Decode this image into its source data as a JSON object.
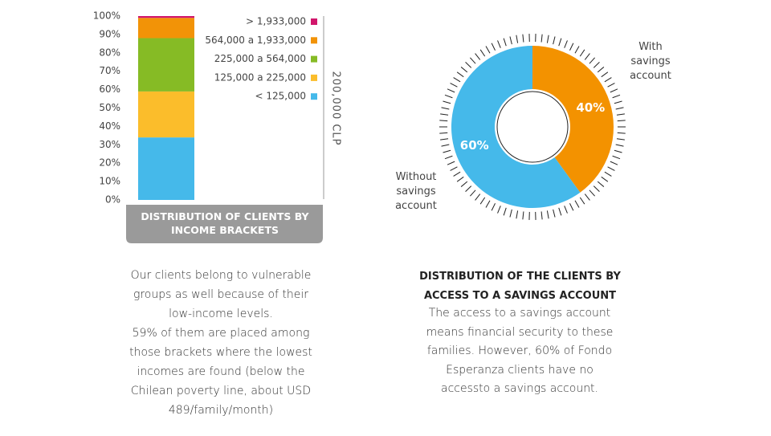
{
  "chart_data": [
    {
      "type": "stacked-bar",
      "title": "DISTRIBUTION OF CLIENTS BY INCOME BRACKETS",
      "annotation": "200,000 CLP",
      "categories": [
        null
      ],
      "series": [
        {
          "name": "< 125,000",
          "color": "#45b9ea",
          "values": [
            34
          ]
        },
        {
          "name": "125,000 a 225,000",
          "color": "#fbbd2b",
          "values": [
            25
          ]
        },
        {
          "name": "225,000 a 564,000",
          "color": "#86bb25",
          "values": [
            29
          ]
        },
        {
          "name": "564,000 a 1,933,000",
          "color": "#f29307",
          "values": [
            11
          ]
        },
        {
          "name": "> 1,933,000",
          "color": "#d1166b",
          "values": [
            1
          ]
        }
      ],
      "ylim": [
        0,
        100
      ],
      "yticks": [
        {
          "value": 0,
          "label": "0%"
        },
        {
          "value": 10,
          "label": "10%"
        },
        {
          "value": 20,
          "label": "20%"
        },
        {
          "value": 30,
          "label": "30%"
        },
        {
          "value": 40,
          "label": "40%"
        },
        {
          "value": 50,
          "label": "50%"
        },
        {
          "value": 60,
          "label": "60%"
        },
        {
          "value": 70,
          "label": "70%"
        },
        {
          "value": 80,
          "label": "80%"
        },
        {
          "value": 90,
          "label": "90%"
        },
        {
          "value": 100,
          "label": "100%"
        }
      ],
      "legend": "right",
      "text": [
        "Our clients belong to vulnerable groups as well because of their low-income levels.",
        "59% of them are placed among those brackets where the lowest incomes are found (below the Chilean poverty line, about USD 489/family/month)"
      ]
    },
    {
      "type": "donut",
      "title": "DISTRIBUTION OF THE CLIENTS BY ACCESS TO A SAVINGS ACCOUNT",
      "categories": [
        "With savings account",
        "Without savings account"
      ],
      "values": [
        40,
        60
      ],
      "value_labels": [
        "40%",
        "60%"
      ],
      "colors": [
        "#f39200",
        "#45b9ea"
      ],
      "text": "The access to a savings account means financial security to these families. However, 60% of Fondo Esperanza clients have no accessto a savings account."
    }
  ]
}
